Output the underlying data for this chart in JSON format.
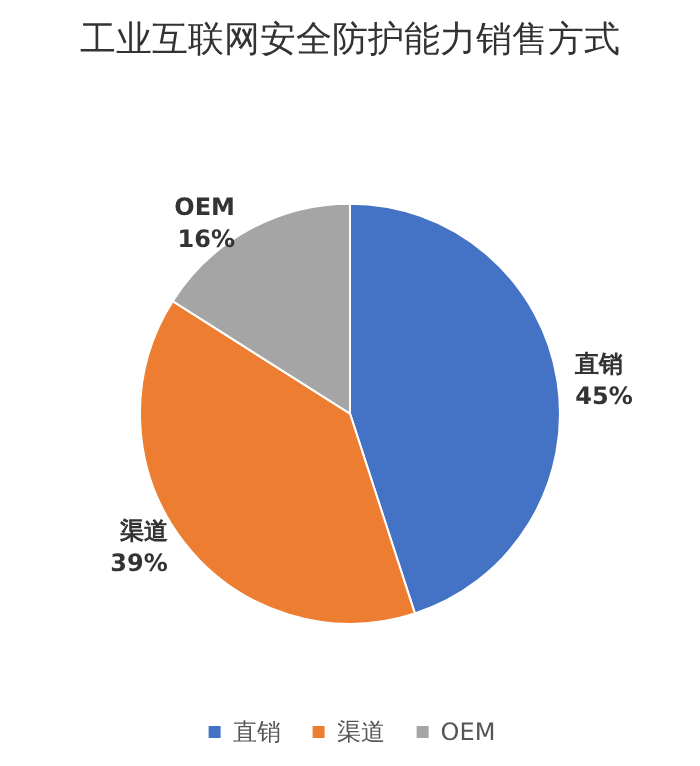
{
  "chart_data": {
    "type": "pie",
    "title": "工业互联网安全防护能力销售方式",
    "categories": [
      "直销",
      "渠道",
      "OEM"
    ],
    "values": [
      45,
      39,
      16
    ],
    "value_labels": [
      "45%",
      "39%",
      "16%"
    ],
    "colors": [
      "#4472c4",
      "#ed7d31",
      "#a5a5a5"
    ],
    "legend": "bottom"
  }
}
